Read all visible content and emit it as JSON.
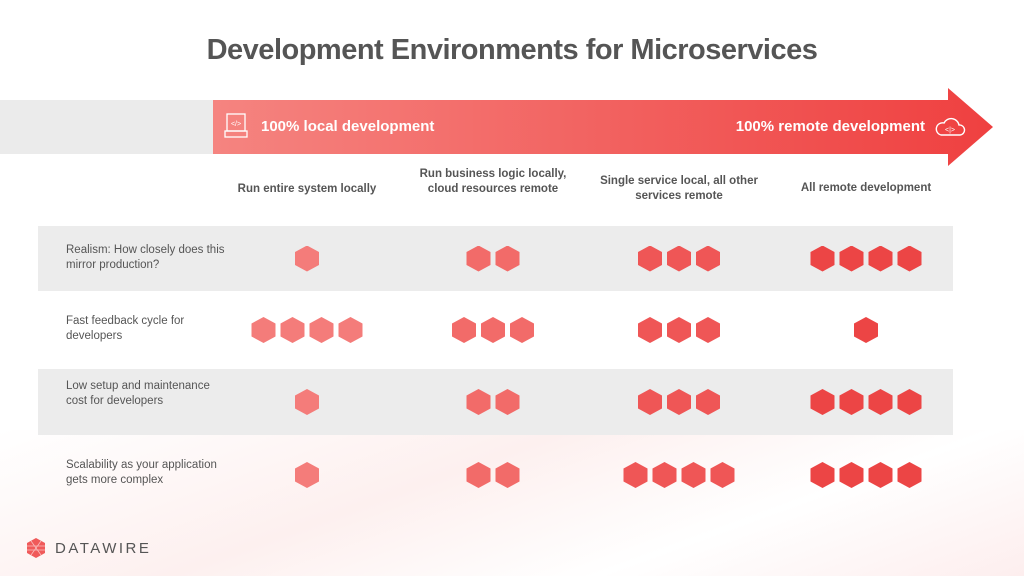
{
  "title": "Development Environments for Microservices",
  "arrow": {
    "left_label": "100% local development",
    "right_label": "100% remote development",
    "left_icon": "laptop-code-icon",
    "right_icon": "cloud-code-icon"
  },
  "columns": [
    "Run entire system locally",
    "Run business logic locally, cloud resources remote",
    "Single service local, all other services remote",
    "All remote development"
  ],
  "column_colors": [
    "#f47c7a",
    "#f26b69",
    "#ef5656",
    "#ec4545"
  ],
  "rows": [
    {
      "label": "Realism: How closely does this mirror production?",
      "scores": [
        1,
        2,
        3,
        4
      ]
    },
    {
      "label": "Fast feedback cycle for developers",
      "scores": [
        4,
        3,
        3,
        1
      ]
    },
    {
      "label": "Low setup and maintenance cost for developers",
      "scores": [
        1,
        2,
        3,
        4
      ]
    },
    {
      "label": "Scalability as your application gets more complex",
      "scores": [
        1,
        2,
        4,
        4
      ]
    }
  ],
  "logo": "DATAWIRE"
}
